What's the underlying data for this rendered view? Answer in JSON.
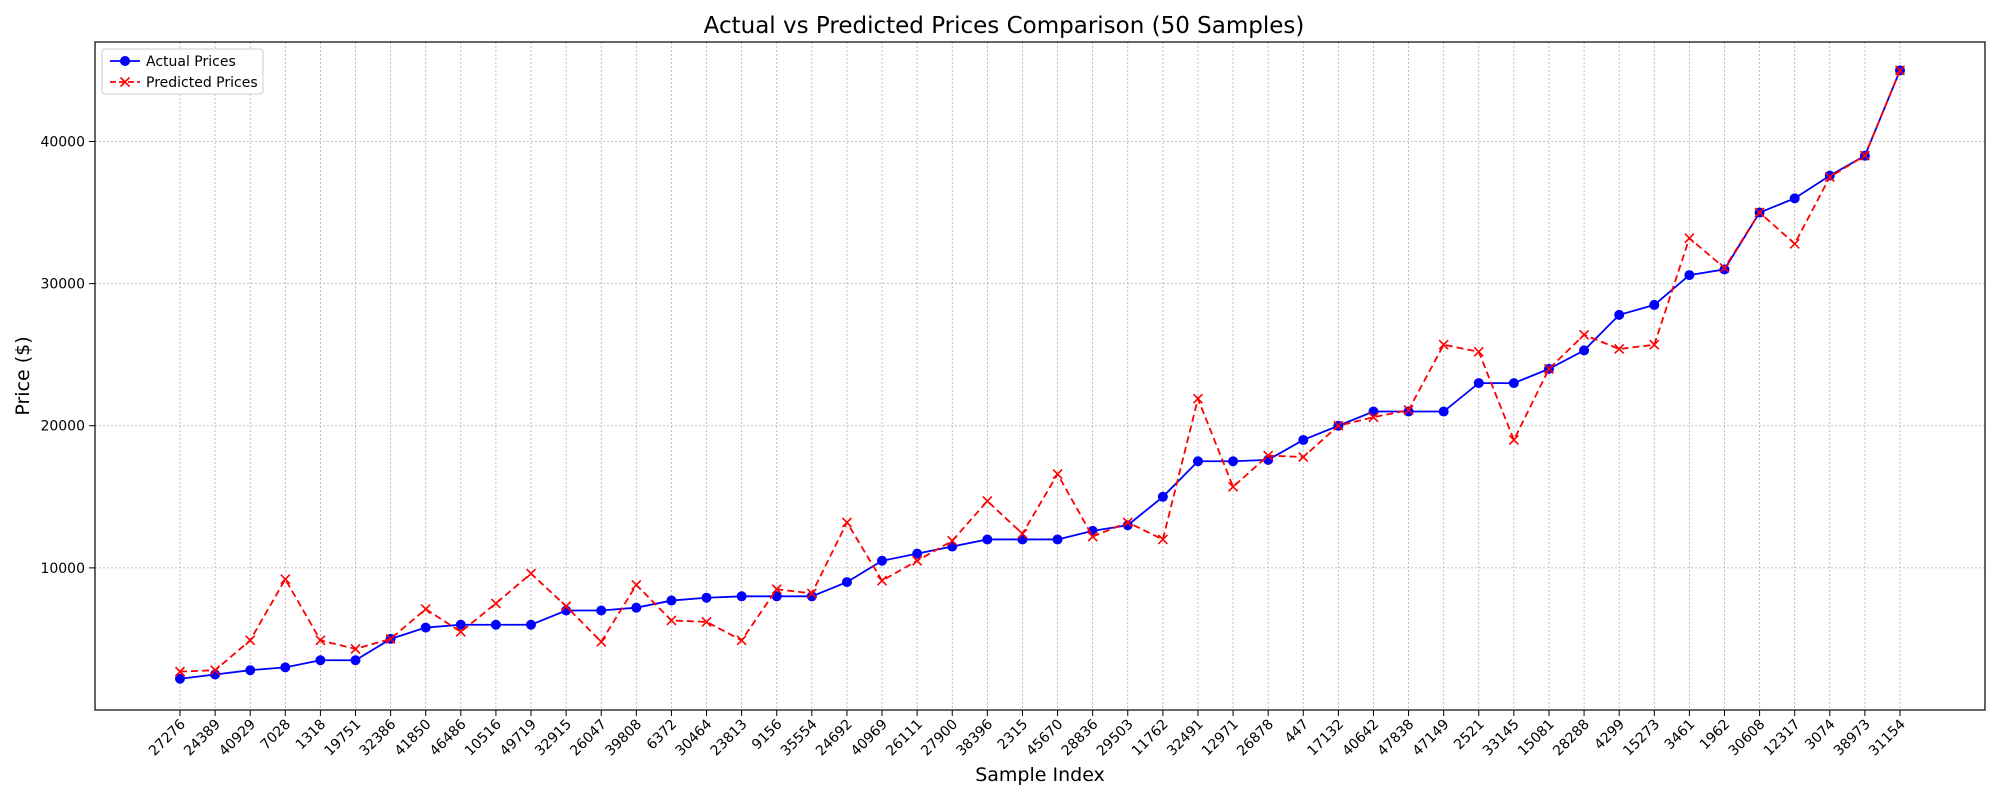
{
  "chart_data": {
    "type": "line",
    "title": "Actual vs Predicted Prices Comparison (50 Samples)",
    "xlabel": "Sample Index",
    "ylabel": "Price ($)",
    "ylim": [
      0,
      47000
    ],
    "yticks": [
      10000,
      20000,
      30000,
      40000
    ],
    "grid": true,
    "legend": "top-left",
    "categories": [
      "27276",
      "24389",
      "40929",
      "7028",
      "1318",
      "19751",
      "32386",
      "41850",
      "46486",
      "10516",
      "49719",
      "32915",
      "26047",
      "39808",
      "6372",
      "30464",
      "23813",
      "9156",
      "35554",
      "24692",
      "40969",
      "26111",
      "27900",
      "38396",
      "2315",
      "45670",
      "28836",
      "29503",
      "11762",
      "32491",
      "12971",
      "26878",
      "447",
      "17132",
      "40642",
      "47838",
      "47149",
      "2521",
      "33145",
      "15081",
      "28288",
      "4299",
      "15273",
      "3461",
      "1962",
      "30608",
      "12317",
      "3074",
      "38973",
      "31154"
    ],
    "series": [
      {
        "name": "Actual Prices",
        "color": "#0000ff",
        "marker": "circle",
        "dash": "solid",
        "values": [
          2200,
          2500,
          2800,
          3000,
          3500,
          3500,
          5000,
          5800,
          6000,
          6000,
          6000,
          7000,
          7000,
          7200,
          7700,
          7900,
          8000,
          8000,
          8000,
          9000,
          10500,
          11000,
          11500,
          12000,
          12000,
          12000,
          12600,
          13000,
          15000,
          17500,
          17500,
          17600,
          19000,
          20000,
          21000,
          21000,
          21000,
          23000,
          23000,
          24000,
          25300,
          27800,
          28500,
          30600,
          31000,
          35000,
          36000,
          37600,
          39000,
          45000
        ]
      },
      {
        "name": "Predicted Prices",
        "color": "#ff0000",
        "marker": "x",
        "dash": "dashed",
        "values": [
          2700,
          2800,
          4900,
          9200,
          4900,
          4300,
          5000,
          7100,
          5500,
          7500,
          9600,
          7300,
          4800,
          8800,
          6300,
          6200,
          4900,
          8500,
          8200,
          13200,
          9100,
          10500,
          11900,
          14700,
          12400,
          16600,
          12200,
          13200,
          12000,
          21900,
          15700,
          17900,
          17800,
          20000,
          20600,
          21100,
          25700,
          25200,
          19000,
          24000,
          26400,
          25400,
          25700,
          33200,
          31100,
          35000,
          32800,
          37500,
          39000,
          45000
        ]
      }
    ]
  }
}
